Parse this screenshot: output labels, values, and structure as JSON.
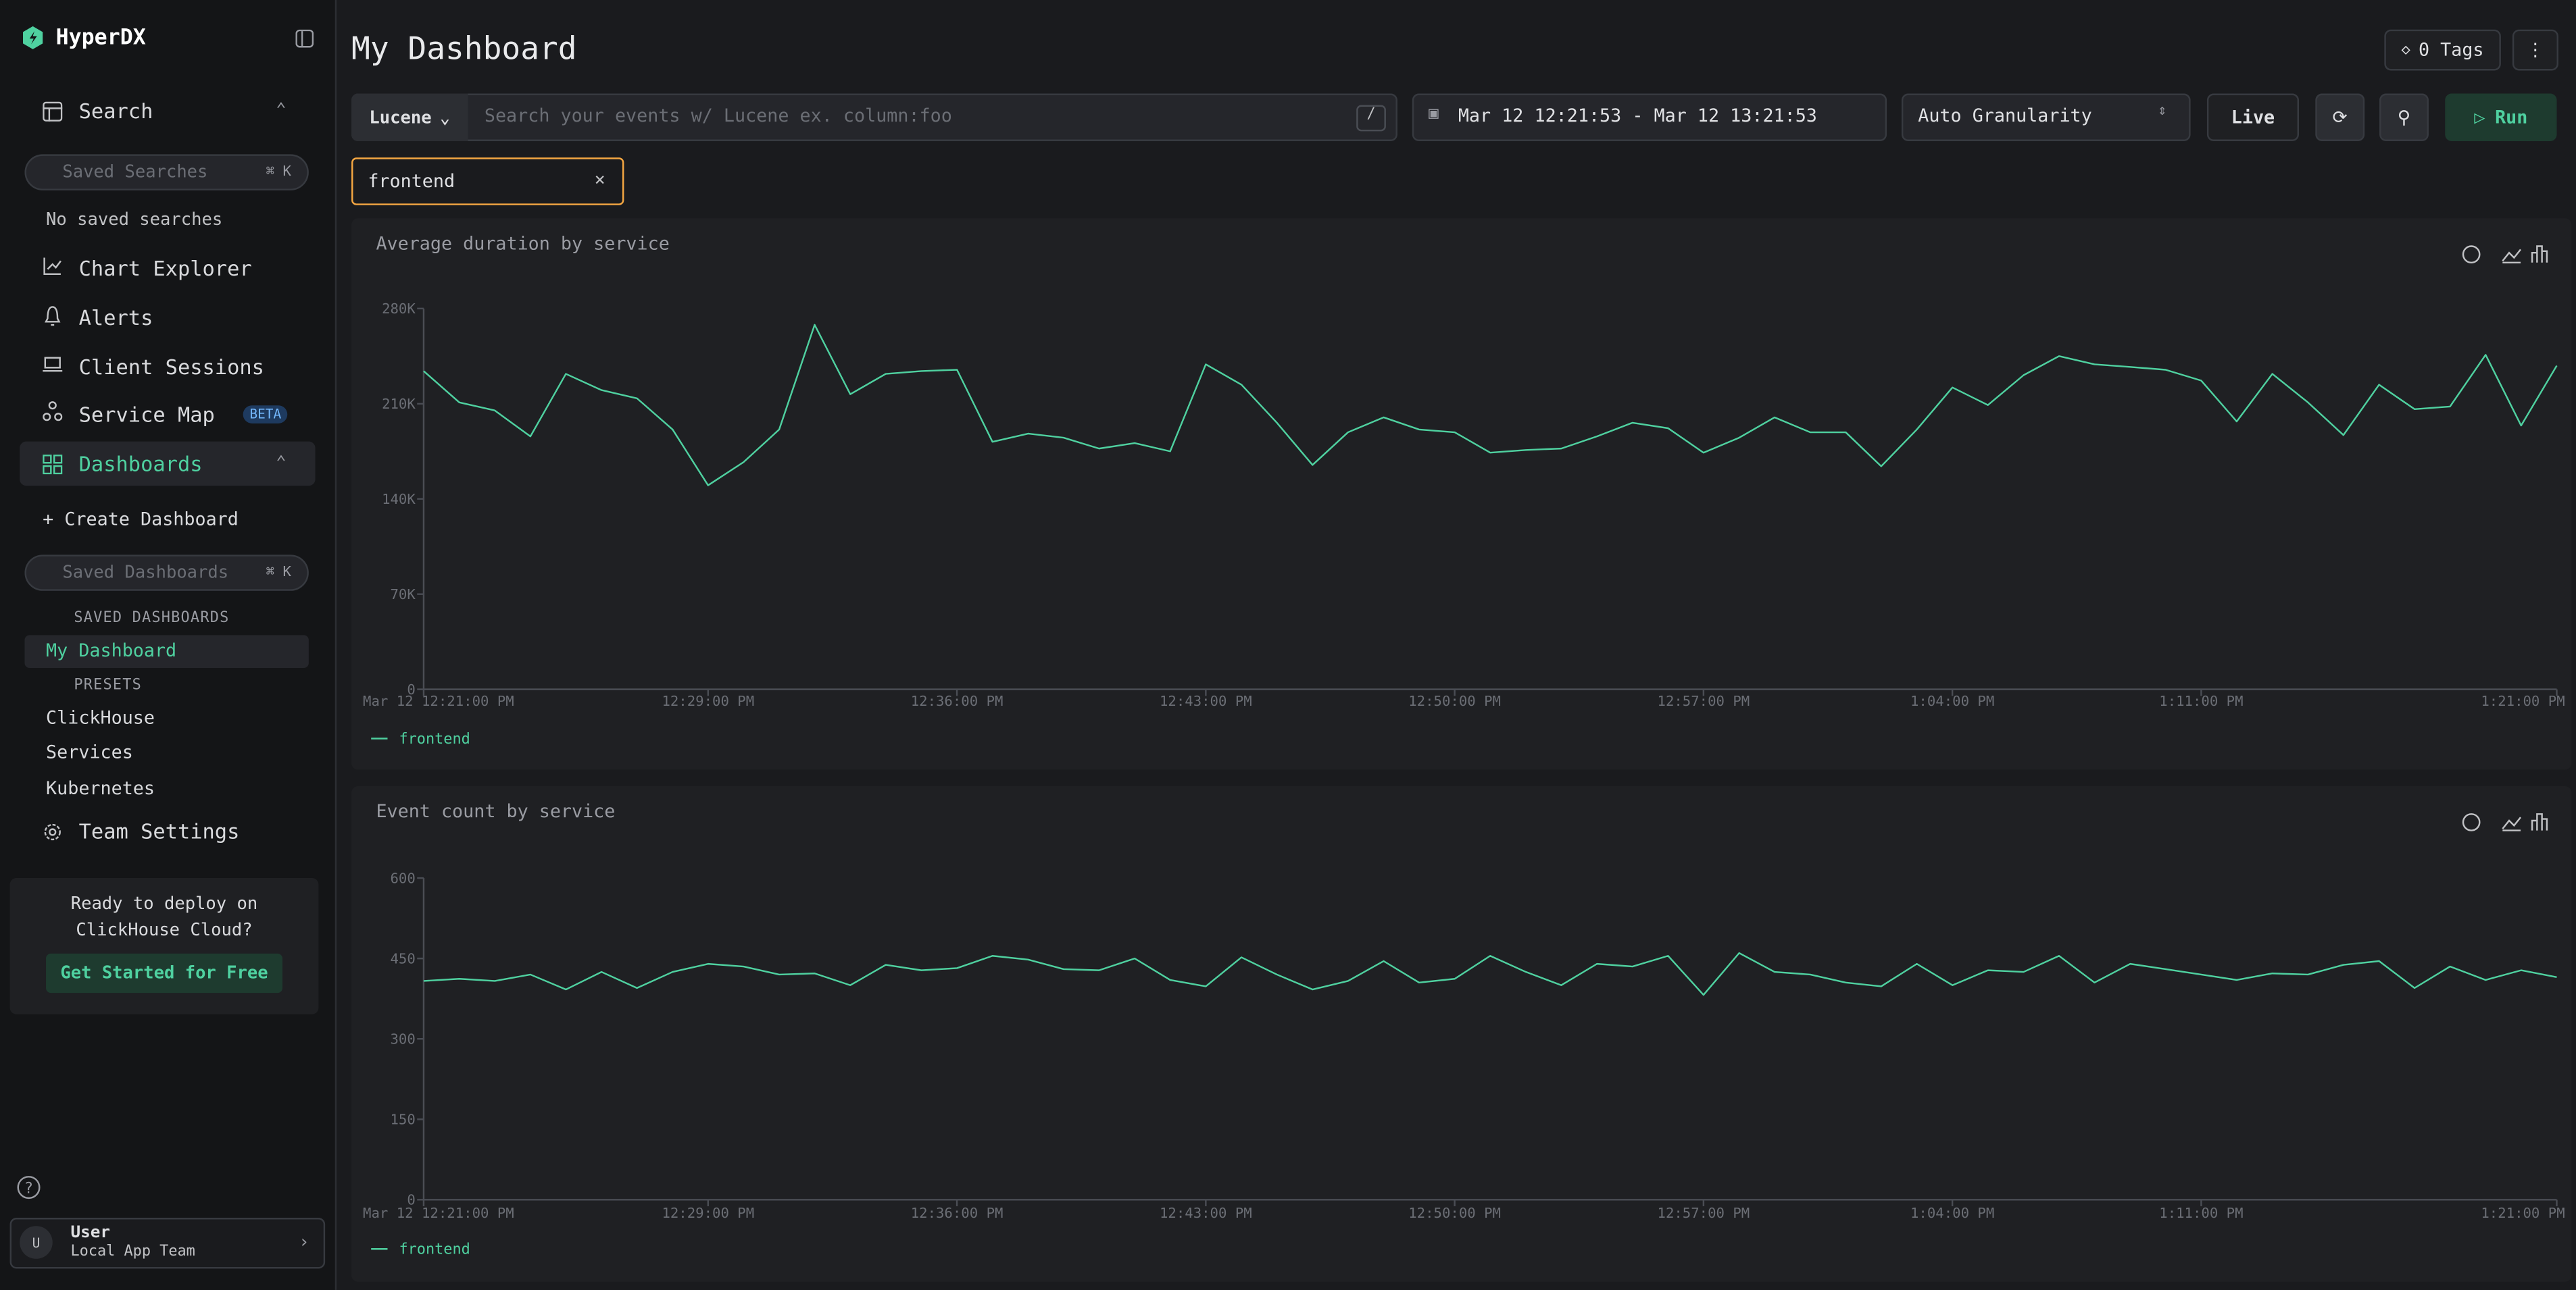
{
  "sidebar": {
    "brand": "HyperDX",
    "search": "Search",
    "saved_searches_placeholder": "Saved Searches",
    "shortcut": "⌘ K",
    "no_saved": "No saved searches",
    "nav": [
      "Chart Explorer",
      "Alerts",
      "Client Sessions",
      "Service Map"
    ],
    "beta": "BETA",
    "dashboards": "Dashboards",
    "create_dashboard": "+ Create Dashboard",
    "saved_dashboards_placeholder": "Saved Dashboards",
    "saved_dashboards_header": "SAVED DASHBOARDS",
    "saved_dashboards": [
      "My Dashboard"
    ],
    "presets_header": "PRESETS",
    "presets": [
      "ClickHouse",
      "Services",
      "Kubernetes"
    ],
    "team_settings": "Team Settings",
    "promo": "Ready to deploy on ClickHouse Cloud?",
    "promo_button": "Get Started for Free",
    "user_initial": "U",
    "user_name": "User",
    "user_team": "Local App Team"
  },
  "header": {
    "title": "My Dashboard",
    "tags": "0 Tags",
    "query_language": "Lucene",
    "search_placeholder": "Search your events w/ Lucene ex. column:foo",
    "search_key": "/",
    "time_range": "Mar 12 12:21:53 - Mar 12 13:21:53",
    "granularity": "Auto Granularity",
    "live": "Live",
    "run": "Run",
    "filter": "frontend"
  },
  "chart_data": [
    {
      "type": "line",
      "title": "Average duration by service",
      "x": [
        "12:21",
        "12:22",
        "12:23",
        "12:24",
        "12:25",
        "12:26",
        "12:27",
        "12:28",
        "12:29",
        "12:30",
        "12:31",
        "12:32",
        "12:33",
        "12:34",
        "12:35",
        "12:36",
        "12:37",
        "12:38",
        "12:39",
        "12:40",
        "12:41",
        "12:42",
        "12:43",
        "12:44",
        "12:45",
        "12:46",
        "12:47",
        "12:48",
        "12:49",
        "12:50",
        "12:51",
        "12:52",
        "12:53",
        "12:54",
        "12:55",
        "12:56",
        "12:57",
        "12:58",
        "12:59",
        "13:00",
        "13:01",
        "13:02",
        "13:03",
        "13:04",
        "13:05",
        "13:06",
        "13:07",
        "13:08",
        "13:09",
        "13:10",
        "13:11",
        "13:12",
        "13:13",
        "13:14",
        "13:15",
        "13:16",
        "13:17",
        "13:18",
        "13:19",
        "13:20",
        "13:21"
      ],
      "xlim": [
        "12:21",
        "13:21"
      ],
      "xticks": [
        {
          "value": "12:21",
          "label": "Mar 12 12:21:00 PM"
        },
        {
          "value": "12:29",
          "label": "12:29:00 PM"
        },
        {
          "value": "12:36",
          "label": "12:36:00 PM"
        },
        {
          "value": "12:43",
          "label": "12:43:00 PM"
        },
        {
          "value": "12:50",
          "label": "12:50:00 PM"
        },
        {
          "value": "12:57",
          "label": "12:57:00 PM"
        },
        {
          "value": "13:04",
          "label": "1:04:00 PM"
        },
        {
          "value": "13:11",
          "label": "1:11:00 PM"
        },
        {
          "value": "13:21",
          "label": "1:21:00 PM"
        }
      ],
      "ylim": [
        0,
        280000
      ],
      "yticks": [
        0,
        {
          "value": 70000,
          "label": "70K"
        },
        {
          "value": 140000,
          "label": "140K"
        },
        {
          "value": 210000,
          "label": "210K"
        },
        {
          "value": 280000,
          "label": "280K"
        }
      ],
      "series": [
        {
          "name": "frontend",
          "color": "#4fd1a0",
          "values": [
            234000,
            211000,
            205000,
            186000,
            232000,
            220000,
            214000,
            191000,
            150000,
            167000,
            191000,
            268000,
            217000,
            232000,
            234000,
            235000,
            182000,
            188000,
            185000,
            177000,
            181000,
            175000,
            239000,
            224000,
            196000,
            165000,
            189000,
            200000,
            191000,
            189000,
            174000,
            176000,
            177000,
            186000,
            196000,
            192000,
            174000,
            185000,
            200000,
            189000,
            189000,
            164000,
            191000,
            222000,
            209000,
            231000,
            245000,
            239000,
            237000,
            235000,
            227000,
            197000,
            232000,
            211000,
            187000,
            224000,
            206000,
            208000,
            246000,
            194000,
            238000
          ]
        }
      ]
    },
    {
      "type": "line",
      "title": "Event count by service",
      "x": [
        "12:21",
        "12:22",
        "12:23",
        "12:24",
        "12:25",
        "12:26",
        "12:27",
        "12:28",
        "12:29",
        "12:30",
        "12:31",
        "12:32",
        "12:33",
        "12:34",
        "12:35",
        "12:36",
        "12:37",
        "12:38",
        "12:39",
        "12:40",
        "12:41",
        "12:42",
        "12:43",
        "12:44",
        "12:45",
        "12:46",
        "12:47",
        "12:48",
        "12:49",
        "12:50",
        "12:51",
        "12:52",
        "12:53",
        "12:54",
        "12:55",
        "12:56",
        "12:57",
        "12:58",
        "12:59",
        "13:00",
        "13:01",
        "13:02",
        "13:03",
        "13:04",
        "13:05",
        "13:06",
        "13:07",
        "13:08",
        "13:09",
        "13:10",
        "13:11",
        "13:12",
        "13:13",
        "13:14",
        "13:15",
        "13:16",
        "13:17",
        "13:18",
        "13:19",
        "13:20",
        "13:21"
      ],
      "xlim": [
        "12:21",
        "13:21"
      ],
      "xticks": [
        {
          "value": "12:21",
          "label": "Mar 12 12:21:00 PM"
        },
        {
          "value": "12:29",
          "label": "12:29:00 PM"
        },
        {
          "value": "12:36",
          "label": "12:36:00 PM"
        },
        {
          "value": "12:43",
          "label": "12:43:00 PM"
        },
        {
          "value": "12:50",
          "label": "12:50:00 PM"
        },
        {
          "value": "12:57",
          "label": "12:57:00 PM"
        },
        {
          "value": "13:04",
          "label": "1:04:00 PM"
        },
        {
          "value": "13:11",
          "label": "1:11:00 PM"
        },
        {
          "value": "13:21",
          "label": "1:21:00 PM"
        }
      ],
      "ylim": [
        0,
        600
      ],
      "yticks": [
        0,
        150,
        300,
        450,
        600
      ],
      "series": [
        {
          "name": "frontend",
          "color": "#4fd1a0",
          "values": [
            408,
            412,
            408,
            420,
            392,
            425,
            395,
            425,
            440,
            435,
            420,
            422,
            400,
            438,
            428,
            432,
            455,
            448,
            430,
            428,
            450,
            410,
            398,
            452,
            420,
            392,
            408,
            445,
            405,
            412,
            455,
            425,
            400,
            440,
            435,
            455,
            382,
            460,
            425,
            420,
            405,
            398,
            440,
            400,
            428,
            425,
            455,
            405,
            440,
            430,
            420,
            410,
            422,
            420,
            438,
            445,
            395,
            435,
            410,
            428,
            415
          ]
        }
      ]
    }
  ]
}
